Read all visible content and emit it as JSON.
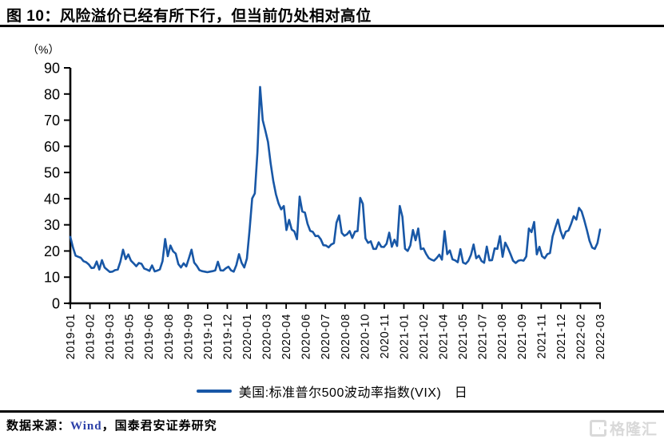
{
  "figure": {
    "title": "图 10：风险溢价已经有所下行，但当前仍处相对高位",
    "unit_label": "（%）",
    "source_prefix": "数据来源：",
    "source_wind": "Wind",
    "source_suffix": "，国泰君安证券研究",
    "watermark_text": "格隆汇"
  },
  "colors": {
    "line": "#1857A6",
    "axis": "#000000",
    "wind_text": "#2B3FA8",
    "watermark": "#D9D9D9"
  },
  "chart_data": {
    "type": "line",
    "title": "美国:标准普尔500波动率指数(VIX) 日",
    "xlabel": "",
    "ylabel": "（%）",
    "ylim": [
      0,
      90
    ],
    "yticks": [
      0,
      10,
      20,
      30,
      40,
      50,
      60,
      70,
      80,
      90
    ],
    "grid": false,
    "legend_position": "bottom",
    "x_tick_labels": [
      "2019-01",
      "2019-02",
      "2019-03",
      "2019-05",
      "2019-06",
      "2019-08",
      "2019-09",
      "2019-10",
      "2019-12",
      "2020-01",
      "2020-03",
      "2020-04",
      "2020-06",
      "2020-07",
      "2020-08",
      "2020-10",
      "2020-11",
      "2021-01",
      "2021-02",
      "2021-04",
      "2021-05",
      "2021-07",
      "2021-08",
      "2021-09",
      "2021-11",
      "2021-12",
      "2022-02",
      "2022-03"
    ],
    "series": [
      {
        "name": "美国:标准普尔500波动率指数(VIX)　日",
        "values": [
          25.4,
          21.4,
          18.2,
          17.8,
          17.4,
          16.1,
          15.7,
          14.9,
          13.5,
          13.6,
          16.0,
          12.9,
          16.5,
          13.7,
          12.8,
          12.0,
          12.1,
          12.7,
          12.9,
          16.0,
          20.5,
          16.9,
          18.7,
          16.3,
          15.3,
          14.2,
          15.4,
          15.1,
          13.3,
          12.9,
          12.4,
          14.5,
          12.2,
          12.5,
          13.0,
          16.1,
          24.6,
          18.0,
          22.1,
          19.9,
          19.0,
          15.0,
          13.7,
          15.3,
          14.1,
          17.2,
          20.5,
          15.6,
          14.3,
          12.7,
          12.3,
          12.1,
          11.9,
          12.1,
          12.3,
          12.6,
          15.9,
          12.6,
          12.5,
          13.4,
          14.0,
          12.6,
          12.1,
          14.6,
          18.8,
          15.5,
          13.7,
          17.1,
          27.9,
          40.1,
          42.0,
          57.8,
          82.7,
          70.0,
          66.0,
          61.7,
          53.5,
          46.8,
          41.7,
          38.2,
          35.9,
          37.2,
          28.0,
          31.9,
          28.2,
          27.5,
          24.5,
          40.8,
          35.1,
          34.7,
          30.4,
          27.7,
          27.3,
          25.7,
          25.8,
          24.5,
          22.2,
          22.1,
          21.4,
          22.5,
          23.0,
          30.8,
          33.6,
          26.9,
          25.8,
          26.4,
          27.6,
          25.0,
          27.4,
          27.6,
          40.3,
          38.0,
          24.8,
          23.1,
          23.7,
          20.8,
          20.8,
          23.3,
          21.6,
          21.5,
          22.8,
          27.0,
          21.6,
          24.3,
          21.9,
          37.2,
          33.1,
          20.9,
          20.0,
          22.1,
          28.0,
          24.1,
          28.6,
          20.7,
          21.0,
          18.9,
          17.3,
          16.7,
          16.3,
          17.3,
          18.6,
          16.7,
          27.6,
          18.8,
          20.2,
          16.8,
          16.4,
          15.7,
          20.7,
          15.6,
          15.1,
          16.2,
          18.5,
          22.5,
          17.2,
          18.2,
          16.2,
          15.5,
          21.7,
          16.4,
          16.5,
          21.0,
          20.8,
          25.7,
          17.8,
          23.2,
          21.2,
          18.8,
          16.3,
          15.4,
          16.3,
          16.5,
          16.3,
          17.9,
          28.6,
          27.2,
          31.1,
          18.7,
          21.6,
          18.0,
          17.2,
          18.8,
          19.2,
          25.6,
          28.9,
          32.0,
          27.7,
          24.8,
          27.4,
          27.8,
          30.3,
          33.3,
          32.0,
          36.5,
          35.1,
          31.8,
          28.0,
          23.9,
          21.3,
          20.8,
          23.0,
          28.2
        ]
      }
    ]
  }
}
